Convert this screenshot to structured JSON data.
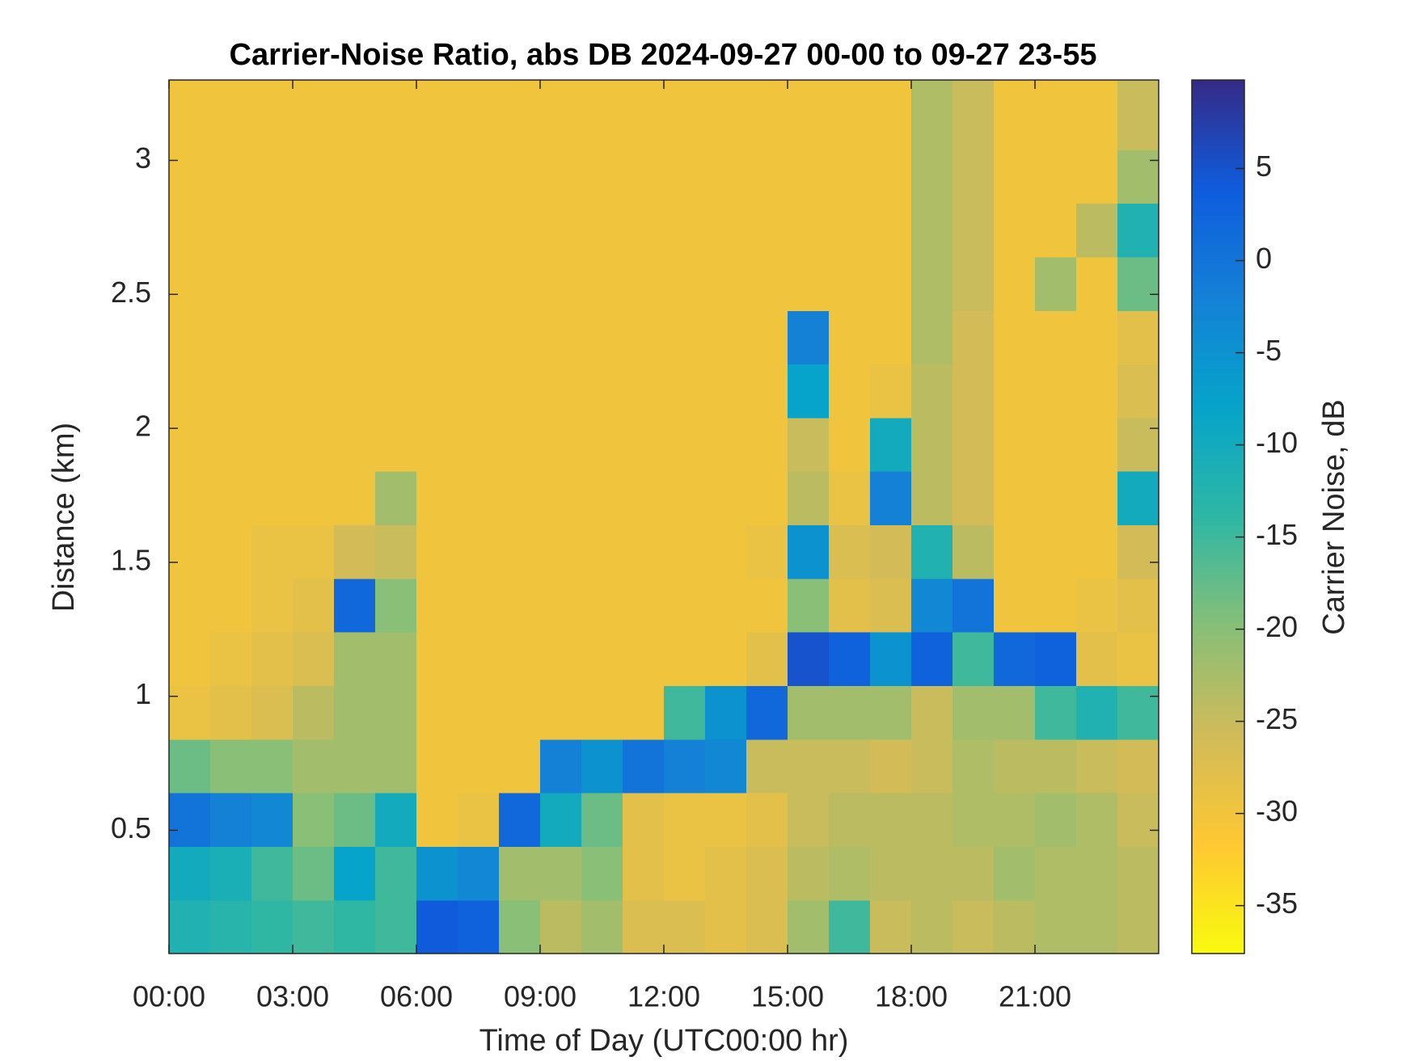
{
  "chart_data": {
    "type": "heatmap",
    "title": "Carrier-Noise Ratio, abs DB 2024-09-27 00-00 to 09-27 23-55",
    "xlabel": "Time of Day (UTC00:00 hr)",
    "ylabel": "Distance (km)",
    "colorbar_label": "Carrier Noise, dB",
    "x": [
      0.5,
      1.5,
      2.5,
      3.5,
      4.5,
      5.5,
      6.5,
      7.5,
      8.5,
      9.5,
      10.5,
      11.5,
      12.5,
      13.5,
      14.5,
      15.5,
      16.5,
      17.5,
      18.5,
      19.5,
      20.5,
      21.5,
      22.5,
      23.5
    ],
    "y": [
      0.14,
      0.34,
      0.54,
      0.74,
      0.94,
      1.14,
      1.34,
      1.54,
      1.74,
      1.94,
      2.14,
      2.34,
      2.54,
      2.74,
      2.94,
      3.14
    ],
    "z": [
      [
        -12,
        -13,
        -14,
        -15,
        -14,
        -15,
        4,
        3,
        -20,
        -24,
        -22,
        -27,
        -27,
        -28,
        -27,
        -22,
        -15,
        -25,
        -24,
        -25,
        -24,
        -23,
        -23,
        -24
      ],
      [
        -10,
        -11,
        -15,
        -18,
        -8,
        -15,
        -5,
        -3,
        -22,
        -22,
        -20,
        -28,
        -29,
        -28,
        -27,
        -24,
        -23,
        -24,
        -24,
        -24,
        -22,
        -23,
        -23,
        -24
      ],
      [
        0,
        -2,
        -3,
        -20,
        -18,
        -10,
        -30,
        -29,
        2,
        -10,
        -18,
        -28,
        -29,
        -29,
        -28,
        -25,
        -24,
        -24,
        -24,
        -23,
        -23,
        -22,
        -23,
        -25
      ],
      [
        -18,
        -20,
        -20,
        -22,
        -22,
        -22,
        -30,
        -30,
        -30,
        -2,
        -5,
        0,
        -2,
        -3,
        -25,
        -25,
        -25,
        -26,
        -25,
        -23,
        -24,
        -24,
        -25,
        -26
      ],
      [
        -29,
        -28,
        -27,
        -24,
        -22,
        -22,
        -30,
        -30,
        -30,
        -30,
        -30,
        -30,
        -15,
        -5,
        2,
        -22,
        -22,
        -22,
        -25,
        -22,
        -22,
        -15,
        -12,
        -15
      ],
      [
        -30,
        -29,
        -28,
        -27,
        -22,
        -22,
        -30,
        -30,
        -30,
        -30,
        -30,
        -30,
        -30,
        -30,
        -28,
        5,
        3,
        -5,
        3,
        -15,
        2,
        3,
        -28,
        -29
      ],
      [
        -30,
        -30,
        -29,
        -28,
        2,
        -20,
        -30,
        -30,
        -30,
        -30,
        -30,
        -30,
        -30,
        -30,
        -30,
        -20,
        -28,
        -27,
        -3,
        0,
        -30,
        -30,
        -29,
        -28
      ],
      [
        -30,
        -30,
        -29,
        -29,
        -26,
        -25,
        -30,
        -30,
        -30,
        -30,
        -30,
        -30,
        -30,
        -30,
        -29,
        -5,
        -27,
        -26,
        -12,
        -24,
        -30,
        -30,
        -30,
        -26
      ],
      [
        -30,
        -30,
        -30,
        -30,
        -30,
        -22,
        -30,
        -30,
        -30,
        -30,
        -30,
        -30,
        -30,
        -30,
        -30,
        -24,
        -29,
        -2,
        -24,
        -26,
        -30,
        -30,
        -30,
        -10
      ],
      [
        -30,
        -30,
        -30,
        -30,
        -30,
        -30,
        -30,
        -30,
        -30,
        -30,
        -30,
        -30,
        -30,
        -30,
        -30,
        -25,
        -30,
        -10,
        -24,
        -26,
        -30,
        -30,
        -30,
        -25
      ],
      [
        -30,
        -30,
        -30,
        -30,
        -30,
        -30,
        -30,
        -30,
        -30,
        -30,
        -30,
        -30,
        -30,
        -30,
        -30,
        -8,
        -30,
        -29,
        -24,
        -26,
        -30,
        -30,
        -30,
        -27
      ],
      [
        -30,
        -30,
        -30,
        -30,
        -30,
        -30,
        -30,
        -30,
        -30,
        -30,
        -30,
        -30,
        -30,
        -30,
        -30,
        -2,
        -30,
        -30,
        -23,
        -26,
        -30,
        -30,
        -30,
        -28
      ],
      [
        -30,
        -30,
        -30,
        -30,
        -30,
        -30,
        -30,
        -30,
        -30,
        -30,
        -30,
        -30,
        -30,
        -30,
        -30,
        -30,
        -30,
        -30,
        -23,
        -25,
        -30,
        -22,
        -30,
        -18
      ],
      [
        -30,
        -30,
        -30,
        -30,
        -30,
        -30,
        -30,
        -30,
        -30,
        -30,
        -30,
        -30,
        -30,
        -30,
        -30,
        -30,
        -30,
        -30,
        -23,
        -25,
        -30,
        -30,
        -24,
        -12
      ],
      [
        -30,
        -30,
        -30,
        -30,
        -30,
        -30,
        -30,
        -30,
        -30,
        -30,
        -30,
        -30,
        -30,
        -30,
        -30,
        -30,
        -30,
        -30,
        -23,
        -25,
        -30,
        -30,
        -30,
        -22
      ],
      [
        -30,
        -30,
        -30,
        -30,
        -30,
        -30,
        -30,
        -30,
        -30,
        -30,
        -30,
        -30,
        -30,
        -30,
        -30,
        -30,
        -30,
        -30,
        -23,
        -25,
        -30,
        -30,
        -30,
        -25
      ]
    ],
    "xlim": [
      0,
      24
    ],
    "ylim": [
      0.04,
      3.3
    ],
    "clim": [
      -37.6,
      9.8
    ],
    "xticks": [
      {
        "value": 0,
        "label": "00:00"
      },
      {
        "value": 3,
        "label": "03:00"
      },
      {
        "value": 6,
        "label": "06:00"
      },
      {
        "value": 9,
        "label": "09:00"
      },
      {
        "value": 12,
        "label": "12:00"
      },
      {
        "value": 15,
        "label": "15:00"
      },
      {
        "value": 18,
        "label": "18:00"
      },
      {
        "value": 21,
        "label": "21:00"
      }
    ],
    "yticks": [
      0.5,
      1,
      1.5,
      2,
      2.5,
      3
    ],
    "cticks": [
      -35,
      -30,
      -25,
      -20,
      -15,
      -10,
      -5,
      0,
      5
    ],
    "colormap": [
      "#f9fb0e",
      "#fec832",
      "#d1bb59",
      "#87bf77",
      "#2eb7a4",
      "#06a4ca",
      "#1481d6",
      "#0f5cdd",
      "#352a87"
    ]
  }
}
